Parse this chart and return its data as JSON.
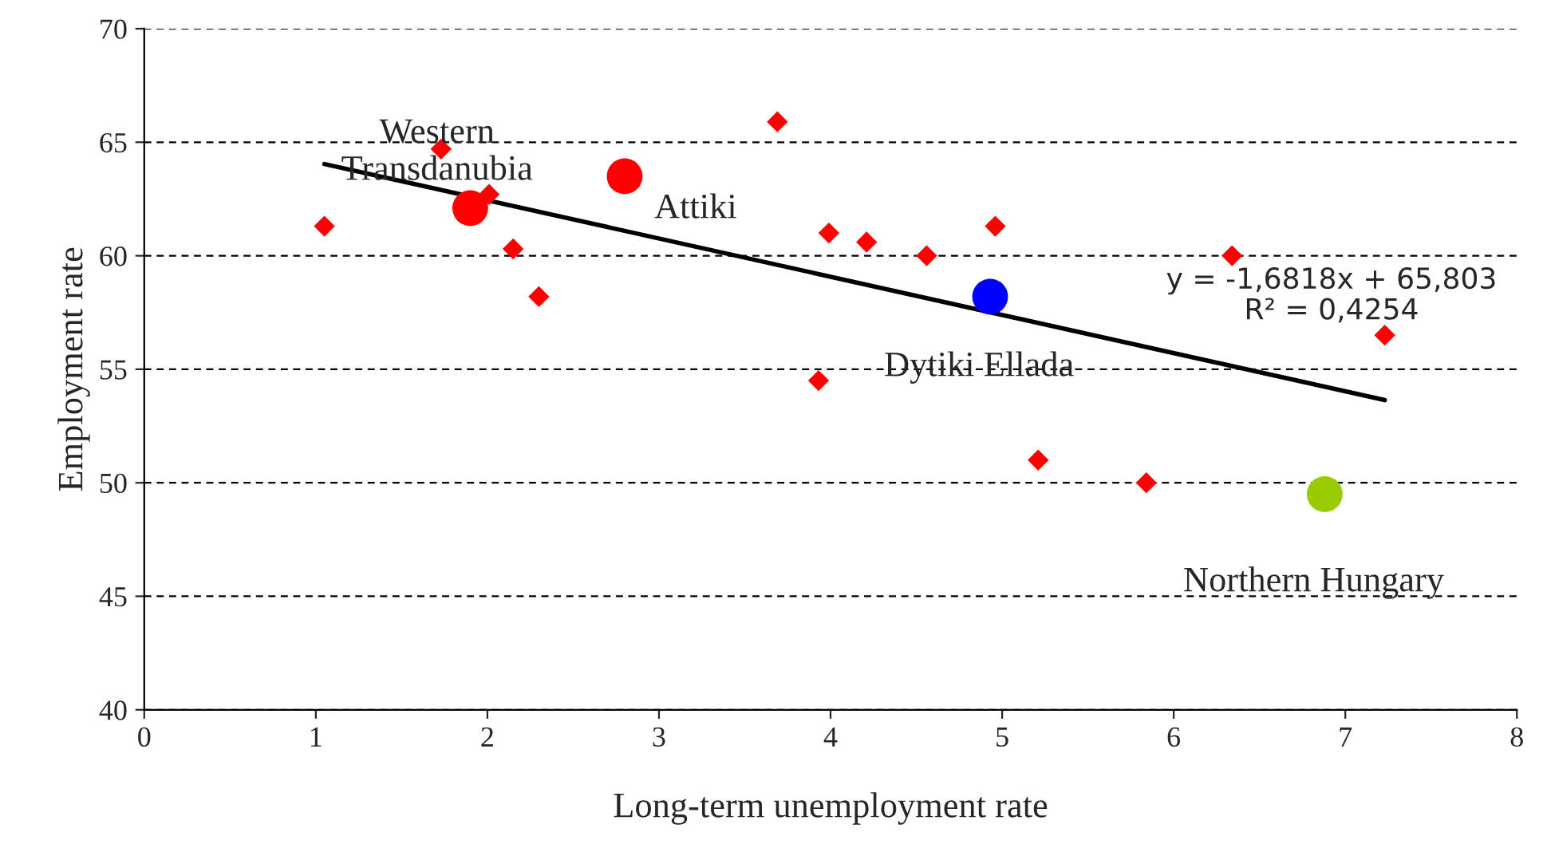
{
  "chart_data": {
    "type": "scatter",
    "xlabel": "Long-term unemployment rate",
    "ylabel": "Employment rate",
    "xlim": [
      0,
      8
    ],
    "ylim": [
      40,
      70
    ],
    "xticks": [
      0,
      1,
      2,
      3,
      4,
      5,
      6,
      7,
      8
    ],
    "yticks": [
      40,
      45,
      50,
      55,
      60,
      65,
      70
    ],
    "grid": "y",
    "series": [
      {
        "marker": "diamond",
        "color": "#ff0000",
        "x": [
          1.05,
          1.73,
          2.01,
          2.15,
          2.3,
          3.69,
          3.99,
          4.21,
          3.93,
          4.56,
          4.96,
          5.21,
          5.84,
          6.34,
          7.23
        ],
        "values": [
          61.3,
          64.7,
          62.7,
          60.3,
          58.2,
          65.9,
          61.0,
          60.6,
          54.5,
          60.0,
          61.3,
          51.0,
          50.0,
          60.0,
          56.5
        ]
      },
      {
        "marker": "circle",
        "colors": [
          "#ff0000",
          "#ff0000",
          "#0000ff",
          "#99cc00"
        ],
        "x": [
          1.9,
          2.8,
          4.93,
          6.88
        ],
        "values": [
          62.1,
          63.5,
          58.2,
          49.5
        ]
      },
      {
        "type": "line",
        "marker": "none",
        "line_style": "solid",
        "color": "#000000",
        "x": [
          1.05,
          7.23
        ],
        "values": [
          64.04,
          53.64
        ]
      }
    ],
    "annotations": [
      {
        "text": "Western\nTransdanubia",
        "x": 1.9,
        "y": 62.1
      },
      {
        "text": "Attiki",
        "x": 2.8,
        "y": 63.5
      },
      {
        "text": "Dytiki Ellada",
        "x": 4.93,
        "y": 58.2
      },
      {
        "text": "Northern Hungary",
        "x": 6.88,
        "y": 49.5
      },
      "y = -1,6818x + 65,803",
      "R² = 0,4254"
    ]
  }
}
